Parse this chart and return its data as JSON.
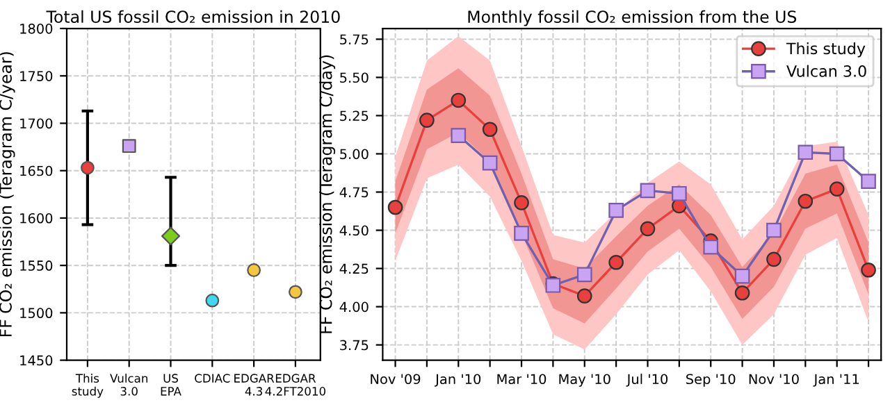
{
  "chart_data": [
    {
      "type": "scatter",
      "title": "Total US fossil CO₂ emission in 2010",
      "ylabel": "FF CO₂ emission (Teragram C/year)",
      "categories": [
        "This\nstudy",
        "Vulcan\n3.0",
        "US\nEPA",
        "CDIAC",
        "EDGAR\n4.3",
        "EDGAR\n4.2FT2010"
      ],
      "ylim": [
        1450,
        1800
      ],
      "yticks": [
        1450,
        1500,
        1550,
        1600,
        1650,
        1700,
        1750,
        1800
      ],
      "grid": true,
      "legend": false,
      "series": [
        {
          "marker": "circle",
          "values": [
            1653,
            null,
            null,
            1513,
            1545,
            1522
          ],
          "colors": [
            "#e8403c",
            null,
            null,
            "#40d8f0",
            "#f5c640",
            "#f5c640"
          ],
          "errors": [
            [
              1593,
              1713
            ],
            null,
            null,
            null,
            null,
            null
          ]
        },
        {
          "marker": "square",
          "values": [
            null,
            1676,
            null,
            null,
            null,
            null
          ],
          "colors": [
            null,
            "#c8a4f2",
            null,
            null,
            null,
            null
          ]
        },
        {
          "marker": "diamond",
          "values": [
            null,
            null,
            1581,
            null,
            null,
            null
          ],
          "colors": [
            null,
            null,
            "#7ccc1c",
            null,
            null,
            null
          ],
          "errors": [
            null,
            null,
            [
              1550,
              1643
            ],
            null,
            null,
            null
          ]
        }
      ]
    },
    {
      "type": "line",
      "title": "Monthly fossil CO₂ emission from the US",
      "ylabel": "FF CO₂ emission (Teragram C/day)",
      "categories": [
        "Nov '09",
        null,
        "Jan '10",
        null,
        "Mar '10",
        null,
        "May '10",
        null,
        "Jul '10",
        null,
        "Sep '10",
        null,
        "Nov '10",
        null,
        "Jan '11",
        null
      ],
      "ylim": [
        3.65,
        5.82
      ],
      "yticks": [
        {
          "value": 3.75,
          "label": "3.75"
        },
        {
          "value": 4,
          "label": "4.00"
        },
        {
          "value": 4.25,
          "label": "4.25"
        },
        {
          "value": 4.5,
          "label": "4.50"
        },
        {
          "value": 4.75,
          "label": "4.75"
        },
        {
          "value": 5,
          "label": "5.00"
        },
        {
          "value": 5.25,
          "label": "5.25"
        },
        {
          "value": 5.5,
          "label": "5.50"
        },
        {
          "value": 5.75,
          "label": "5.75"
        }
      ],
      "grid": true,
      "legend": "top right",
      "series": [
        {
          "color": "#ffc6c6",
          "values": [
            null,
            null,
            null,
            null,
            null,
            null,
            null,
            null,
            null,
            null,
            null,
            null,
            null,
            null,
            null,
            null
          ],
          "lower": [
            4.3,
            4.84,
            4.93,
            4.72,
            4.3,
            3.82,
            3.72,
            3.95,
            4.21,
            4.37,
            4.1,
            3.75,
            3.95,
            4.34,
            4.45,
            3.9
          ],
          "upper": [
            4.98,
            5.61,
            5.77,
            5.61,
            5.05,
            4.47,
            4.42,
            4.62,
            4.81,
            4.95,
            4.8,
            4.44,
            4.66,
            5.05,
            5.08,
            4.6
          ]
        },
        {
          "name": "This study",
          "color": "#e8403c",
          "marker": "circle",
          "lower": [
            4.48,
            5.03,
            5.14,
            4.95,
            4.48,
            3.99,
            3.89,
            4.12,
            4.36,
            4.51,
            4.26,
            3.92,
            4.13,
            4.51,
            4.61,
            4.08
          ],
          "upper": [
            4.82,
            5.42,
            5.56,
            5.38,
            4.87,
            4.31,
            4.25,
            4.46,
            4.66,
            4.8,
            4.6,
            4.26,
            4.48,
            4.87,
            4.93,
            4.42
          ],
          "values": [
            4.65,
            5.22,
            5.35,
            5.16,
            4.68,
            4.15,
            4.07,
            4.29,
            4.51,
            4.66,
            4.43,
            4.09,
            4.31,
            4.69,
            4.77,
            4.24
          ]
        },
        {
          "name": "Vulcan 3.0",
          "color": "#c8a4f2",
          "marker": "square",
          "values": [
            null,
            null,
            5.12,
            4.94,
            4.48,
            4.14,
            4.21,
            4.63,
            4.76,
            4.74,
            4.39,
            4.2,
            4.5,
            5.01,
            5.0,
            4.82
          ]
        }
      ]
    }
  ]
}
